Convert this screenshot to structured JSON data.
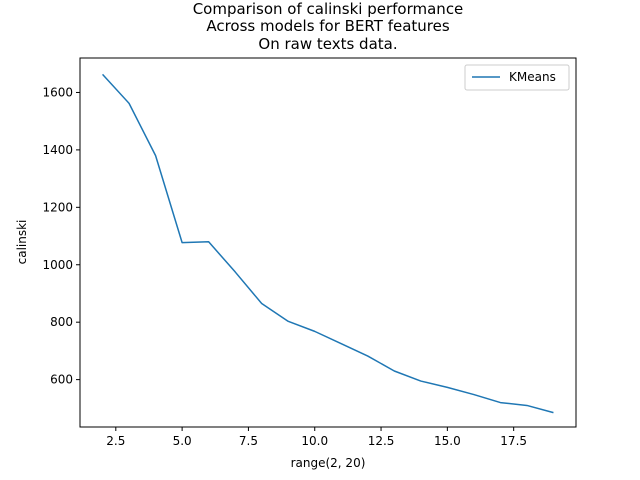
{
  "chart_data": {
    "type": "line",
    "title_lines": [
      "Comparison of calinski performance",
      "Across models for BERT features",
      "On raw texts data."
    ],
    "xlabel": "range(2, 20)",
    "ylabel": "calinski",
    "xlim": [
      1.15,
      19.85
    ],
    "ylim": [
      435,
      1720
    ],
    "xticks": [
      2.5,
      5.0,
      7.5,
      10.0,
      12.5,
      15.0,
      17.5
    ],
    "xtick_labels": [
      "2.5",
      "5.0",
      "7.5",
      "10.0",
      "12.5",
      "15.0",
      "17.5"
    ],
    "yticks": [
      600,
      800,
      1000,
      1200,
      1400,
      1600
    ],
    "ytick_labels": [
      "600",
      "800",
      "1000",
      "1200",
      "1400",
      "1600"
    ],
    "grid": false,
    "legend_position": "top-right",
    "series": [
      {
        "name": "KMeans",
        "color": "#1f77b4",
        "x": [
          2,
          3,
          4,
          5,
          6,
          7,
          8,
          9,
          10,
          11,
          12,
          13,
          14,
          15,
          16,
          17,
          18,
          19
        ],
        "y": [
          1663,
          1562,
          1380,
          1077,
          1080,
          975,
          865,
          803,
          768,
          725,
          682,
          630,
          595,
          573,
          548,
          520,
          510,
          485
        ]
      }
    ]
  }
}
